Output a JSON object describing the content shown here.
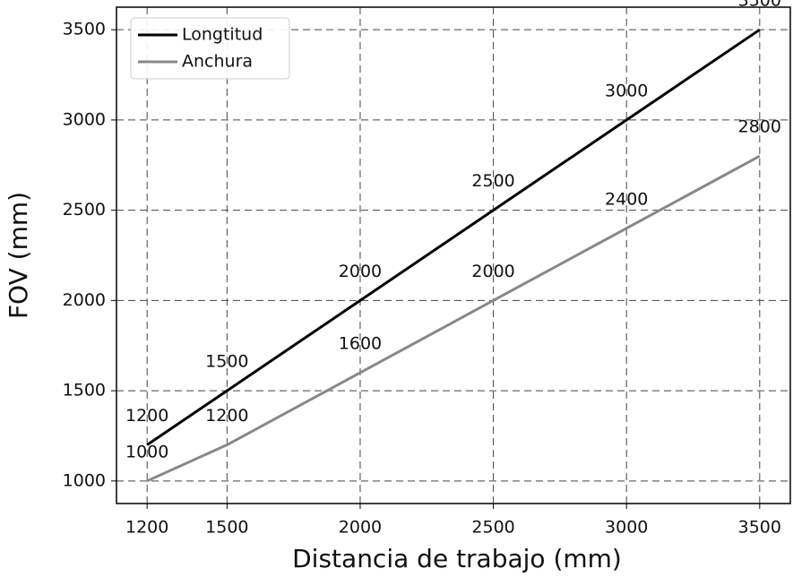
{
  "chart_data": {
    "type": "line",
    "xlabel": "Distancia de trabajo (mm)",
    "ylabel": "FOV (mm)",
    "x": [
      1200,
      1500,
      2000,
      2500,
      3000,
      3500
    ],
    "series": [
      {
        "name": "Longtitud",
        "color": "#000000",
        "values": [
          1200,
          1500,
          2000,
          2500,
          3000,
          3500
        ]
      },
      {
        "name": "Anchura",
        "color": "#888888",
        "values": [
          1000,
          1200,
          1600,
          2000,
          2400,
          2800
        ]
      }
    ],
    "xlim": [
      1085,
      3615
    ],
    "ylim": [
      875,
      3625
    ],
    "xticks": [
      1200,
      1500,
      2000,
      2500,
      3000,
      3500
    ],
    "yticks": [
      1000,
      1500,
      2000,
      2500,
      3000,
      3500
    ],
    "grid": true,
    "legend": "upper left"
  }
}
